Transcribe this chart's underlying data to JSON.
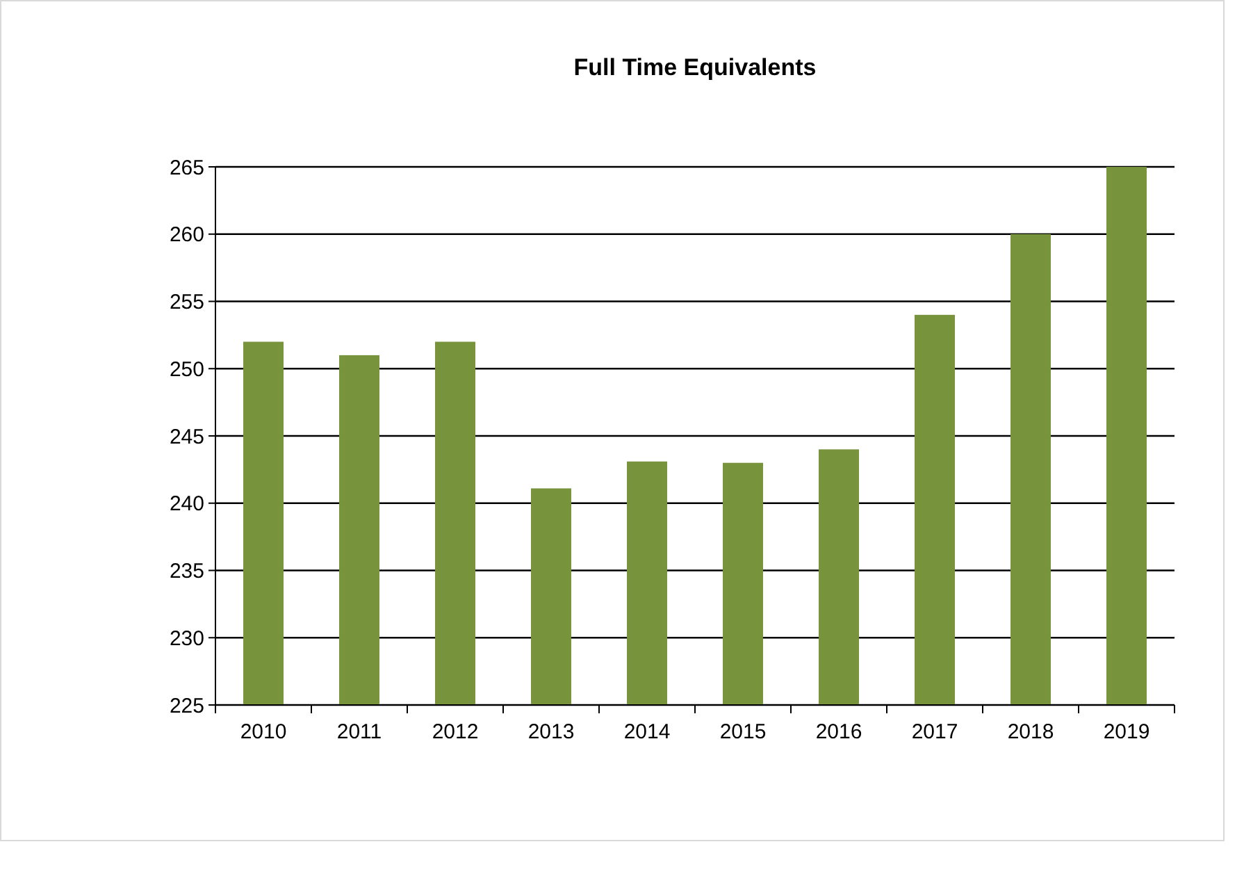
{
  "chart_data": {
    "type": "bar",
    "title": "Full Time Equivalents",
    "categories": [
      "2010",
      "2011",
      "2012",
      "2013",
      "2014",
      "2015",
      "2016",
      "2017",
      "2018",
      "2019"
    ],
    "values": [
      252,
      251,
      252,
      241.1,
      243.1,
      243,
      244,
      254,
      260,
      265
    ],
    "color": "#77933c",
    "ylim": [
      225,
      265
    ],
    "yticks": [
      225,
      230,
      235,
      240,
      245,
      250,
      255,
      260,
      265
    ],
    "grid": "y"
  }
}
